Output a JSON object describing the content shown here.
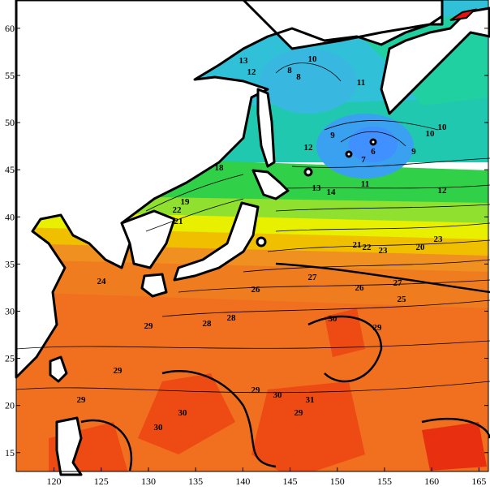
{
  "map": {
    "type": "sea-surface-temperature-contour-map",
    "x_axis": {
      "ticks": [
        "120",
        "125",
        "130",
        "135",
        "140",
        "145",
        "150",
        "155",
        "160",
        "165"
      ],
      "range": [
        116,
        166
      ]
    },
    "y_axis": {
      "ticks": [
        "15",
        "20",
        "25",
        "30",
        "35",
        "40",
        "45",
        "50",
        "55",
        "60"
      ],
      "range": [
        13,
        63
      ]
    },
    "colors": {
      "land": "#ffffff",
      "cold": "#3aaee8",
      "cyan": "#30c0d8",
      "teal": "#20c8a0",
      "green": "#40d040",
      "light_green": "#90e030",
      "yellow": "#e8f000",
      "gold": "#f0c000",
      "orange": "#f08c20",
      "dark_orange": "#f06018",
      "red": "#e83010",
      "coast": "#000000"
    },
    "contour_labels": [
      "13",
      "10",
      "8",
      "8",
      "12",
      "11",
      "10",
      "12",
      "9",
      "6",
      "10",
      "9",
      "7",
      "12",
      "11",
      "13",
      "14",
      "18",
      "19",
      "22",
      "21",
      "23",
      "20",
      "21",
      "22",
      "23",
      "24",
      "26",
      "27",
      "26",
      "27",
      "25",
      "28",
      "29",
      "28",
      "30",
      "29",
      "29",
      "30",
      "31",
      "30",
      "29",
      "30",
      "29",
      "29"
    ]
  }
}
